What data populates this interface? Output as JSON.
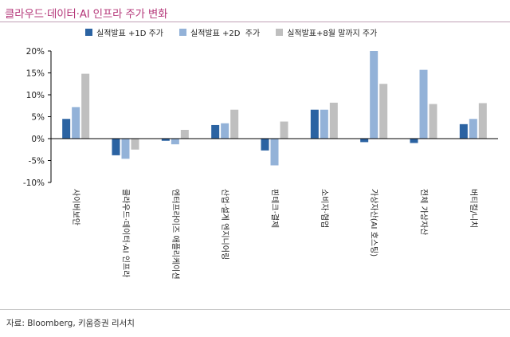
{
  "title": "클라우드·데이터·AI 인프라 주가 변화",
  "source": "자료: Bloomberg, 키움증권 리서치",
  "colors": {
    "d1": "#2b63a2",
    "d2": "#93b2d8",
    "m8": "#bfbfbf"
  },
  "chart_data": {
    "type": "bar",
    "title": "",
    "xlabel": "",
    "ylabel": "",
    "ylim": [
      -10,
      20
    ],
    "yticks": [
      -10,
      -5,
      0,
      5,
      10,
      15,
      20
    ],
    "ytick_labels": [
      "-10%",
      "-5%",
      "0%",
      "5%",
      "10%",
      "15%",
      "20%"
    ],
    "grid": false,
    "legend_position": "top",
    "categories": [
      "사이버보안",
      "클라우드·데이터·AI 인프라",
      "엔터프라이즈 애플리케이션",
      "산업·설계 엔지니어링",
      "핀테크·결제",
      "소비자·협업",
      "가상자산(AI 호스팅)",
      "전체 가상자산",
      "버티컬/니치"
    ],
    "series": [
      {
        "name": "실적발표 +1D 주가",
        "color": "#2b63a2",
        "values": [
          4.5,
          -3.8,
          -0.5,
          3.1,
          -2.7,
          6.6,
          -0.8,
          -1.0,
          3.3
        ]
      },
      {
        "name": "실적발표 +2D  주가",
        "color": "#93b2d8",
        "values": [
          7.2,
          -4.6,
          -1.3,
          3.5,
          -6.1,
          6.6,
          20.0,
          15.7,
          4.5
        ]
      },
      {
        "name": "실적발표+8월 말까지 주가",
        "color": "#bfbfbf",
        "values": [
          14.8,
          -2.5,
          2.0,
          6.6,
          3.9,
          8.2,
          12.5,
          7.9,
          8.1
        ]
      }
    ]
  }
}
